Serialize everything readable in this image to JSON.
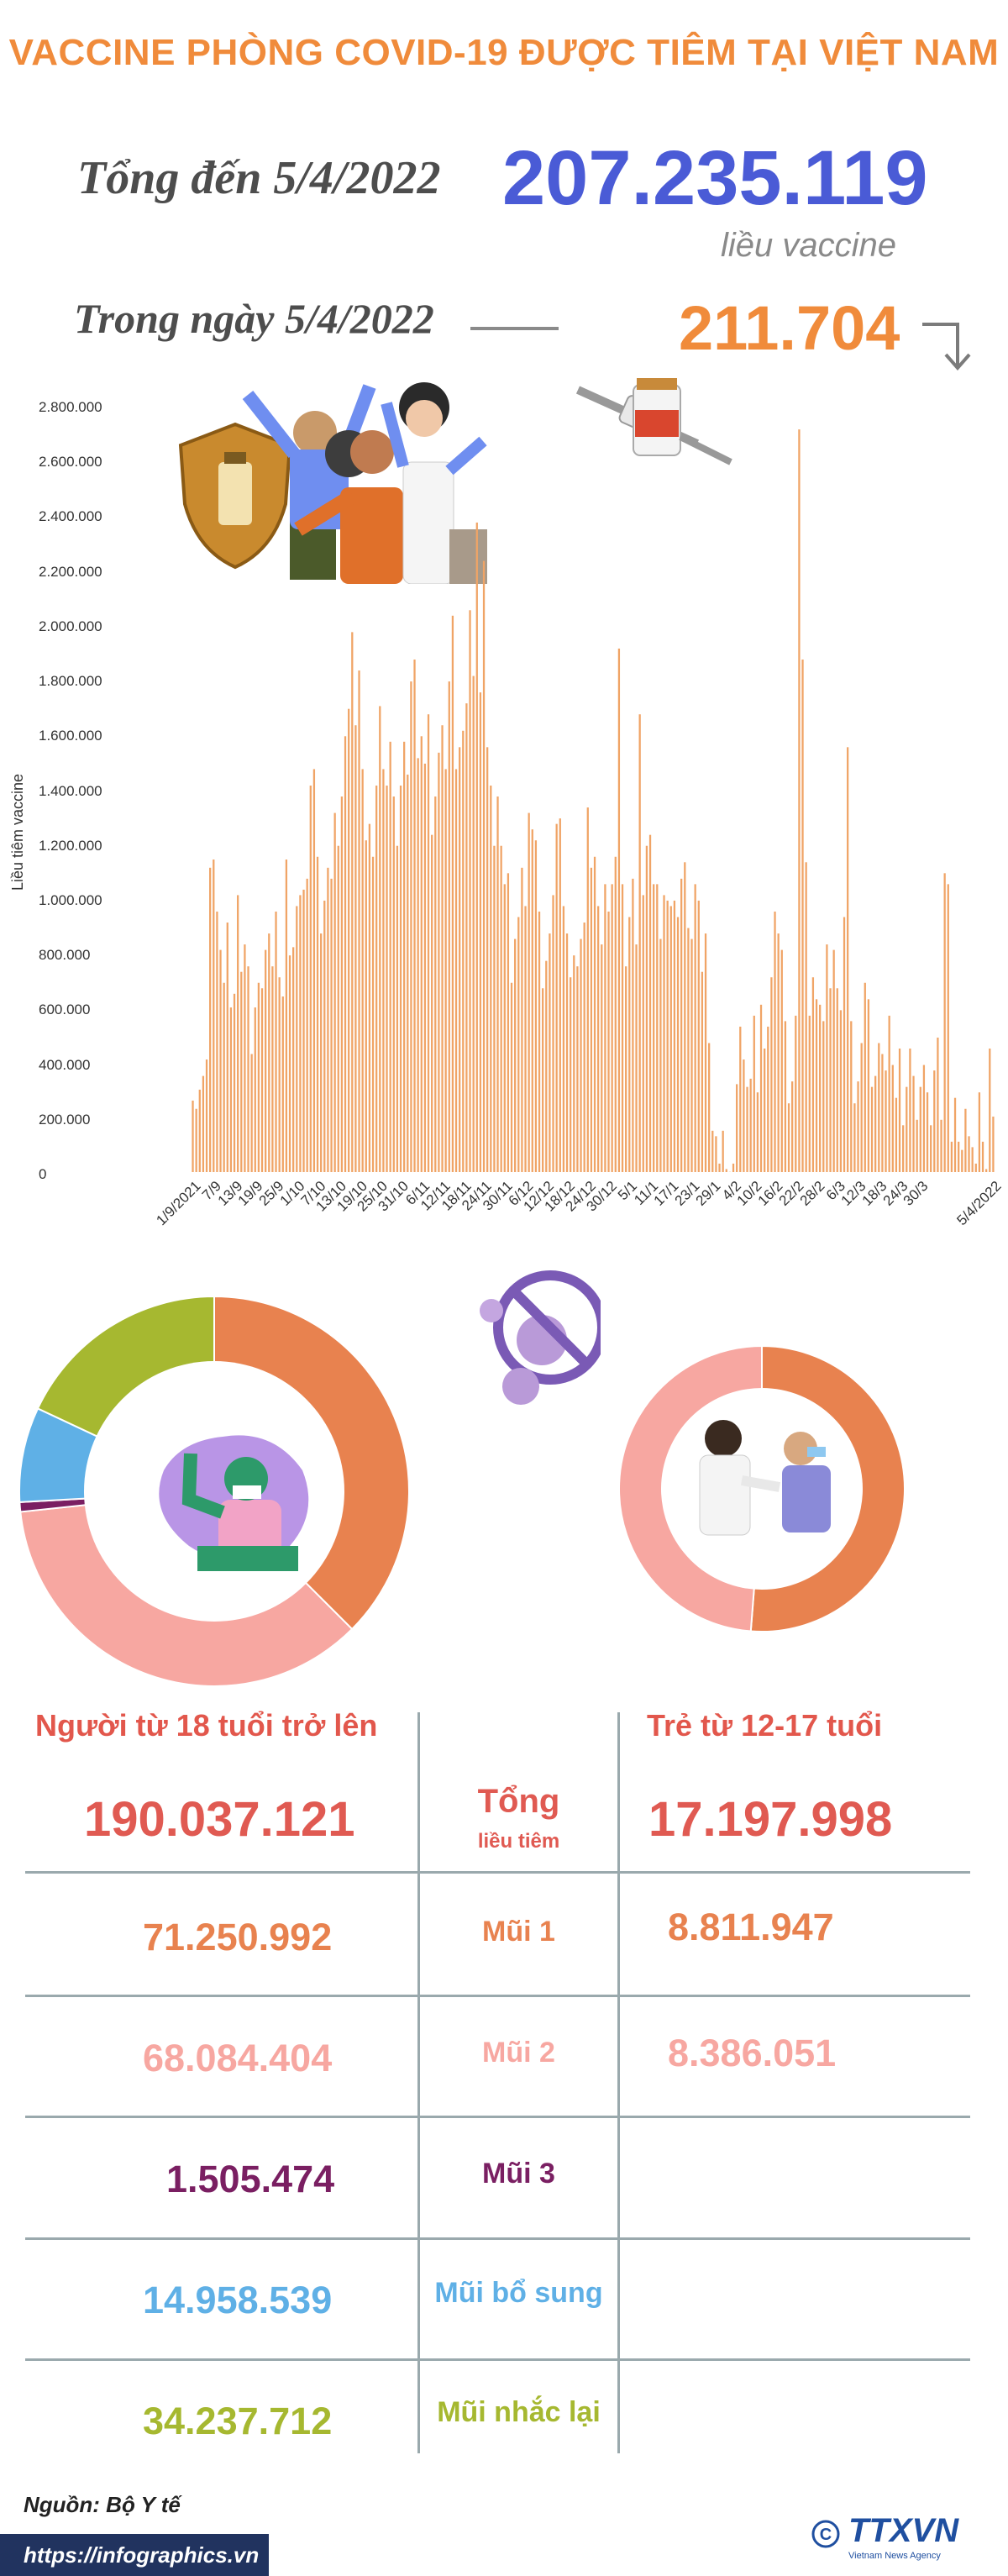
{
  "title": "VACCINE PHÒNG COVID-19 ĐƯỢC TIÊM TẠI VIỆT NAM",
  "summary": {
    "total_label": "Tổng đến 5/4/2022",
    "total_value": "207.235.119",
    "total_unit": "liều vaccine",
    "day_label": "Trong ngày 5/4/2022",
    "day_value": "211.704",
    "day_trend_icon": "arrow-down-icon"
  },
  "chart_data": {
    "type": "bar",
    "ylabel": "Liều tiêm vaccine",
    "ylim": [
      0,
      2800000
    ],
    "yticks": [
      "0",
      "200.000",
      "400.000",
      "600.000",
      "800.000",
      "1.000.000",
      "1.200.000",
      "1.400.000",
      "1.600.000",
      "1.800.000",
      "2.000.000",
      "2.200.000",
      "2.400.000",
      "2.600.000",
      "2.800.000"
    ],
    "x_start": "1/9/2021",
    "x_end": "5/4/2022",
    "xticks": [
      "1/9/2021",
      "7/9",
      "13/9",
      "19/9",
      "25/9",
      "1/10",
      "7/10",
      "13/10",
      "19/10",
      "25/10",
      "31/10",
      "6/11",
      "12/11",
      "18/11",
      "24/11",
      "30/11",
      "6/12",
      "12/12",
      "18/12",
      "24/12",
      "30/12",
      "5/1",
      "11/1",
      "17/1",
      "23/1",
      "29/1",
      "4/2",
      "10/2",
      "16/2",
      "22/2",
      "28/2",
      "6/3",
      "12/3",
      "18/3",
      "24/3",
      "30/3",
      "5/4/2022"
    ],
    "color": "#f0a466",
    "values": [
      270000,
      240000,
      310000,
      360000,
      420000,
      1120000,
      1150000,
      960000,
      820000,
      700000,
      920000,
      610000,
      660000,
      1020000,
      740000,
      840000,
      760000,
      440000,
      610000,
      700000,
      680000,
      820000,
      880000,
      760000,
      960000,
      720000,
      650000,
      1150000,
      800000,
      830000,
      980000,
      1020000,
      1040000,
      1080000,
      1420000,
      1480000,
      1160000,
      880000,
      1000000,
      1120000,
      1080000,
      1320000,
      1200000,
      1380000,
      1600000,
      1700000,
      1980000,
      1640000,
      1840000,
      1480000,
      1220000,
      1280000,
      1160000,
      1420000,
      1710000,
      1480000,
      1420000,
      1580000,
      1380000,
      1200000,
      1420000,
      1580000,
      1460000,
      1800000,
      1880000,
      1520000,
      1600000,
      1500000,
      1680000,
      1240000,
      1380000,
      1540000,
      1640000,
      1480000,
      1800000,
      2040000,
      1480000,
      1560000,
      1620000,
      1720000,
      2060000,
      1820000,
      2380000,
      1760000,
      2240000,
      1560000,
      1420000,
      1200000,
      1380000,
      1200000,
      1060000,
      1100000,
      700000,
      860000,
      940000,
      1120000,
      980000,
      1320000,
      1260000,
      1220000,
      960000,
      680000,
      780000,
      880000,
      1020000,
      1280000,
      1300000,
      980000,
      880000,
      720000,
      800000,
      760000,
      860000,
      920000,
      1340000,
      1120000,
      1160000,
      980000,
      840000,
      1060000,
      960000,
      1060000,
      1160000,
      1920000,
      1060000,
      760000,
      940000,
      1080000,
      840000,
      1680000,
      1020000,
      1200000,
      1240000,
      1060000,
      1060000,
      860000,
      1020000,
      1000000,
      980000,
      1000000,
      940000,
      1080000,
      1140000,
      900000,
      860000,
      1060000,
      1000000,
      740000,
      880000,
      480000,
      160000,
      140000,
      40000,
      160000,
      20000,
      10000,
      40000,
      330000,
      540000,
      420000,
      320000,
      350000,
      580000,
      300000,
      620000,
      460000,
      540000,
      720000,
      960000,
      880000,
      820000,
      560000,
      260000,
      340000,
      580000,
      2720000,
      1880000,
      1140000,
      580000,
      720000,
      640000,
      620000,
      560000,
      840000,
      680000,
      820000,
      680000,
      600000,
      940000,
      1560000,
      560000,
      260000,
      340000,
      480000,
      700000,
      640000,
      320000,
      360000,
      480000,
      440000,
      380000,
      580000,
      400000,
      280000,
      460000,
      180000,
      320000,
      460000,
      360000,
      200000,
      320000,
      400000,
      300000,
      180000,
      380000,
      500000,
      200000,
      1100000,
      1060000,
      120000,
      280000,
      120000,
      90000,
      240000,
      140000,
      100000,
      40000,
      300000,
      120000,
      20000,
      460000,
      211704
    ]
  },
  "groups": {
    "adults": {
      "header": "Người từ 18 tuổi trở lên",
      "total": "190.037.121",
      "dose1": "71.250.992",
      "dose2": "68.084.404",
      "dose3": "1.505.474",
      "supplementary": "14.958.539",
      "booster": "34.237.712"
    },
    "children": {
      "header": "Trẻ từ 12-17 tuổi",
      "total": "17.197.998",
      "dose1": "8.811.947",
      "dose2": "8.386.051"
    }
  },
  "row_labels": {
    "total": "Tổng",
    "total_sub": "liều tiêm",
    "dose1": "Mũi 1",
    "dose2": "Mũi 2",
    "dose3": "Mũi 3",
    "supplementary": "Mũi bổ sung",
    "booster": "Mũi nhắc lại"
  },
  "colors": {
    "total": "#e05a52",
    "dose1": "#e8824f",
    "dose2": "#f7a7a1",
    "dose3": "#7a1f62",
    "supplementary": "#5fb0e6",
    "booster": "#a6b830"
  },
  "footer": {
    "source": "Nguồn: Bộ Y tế",
    "url": "https://infographics.vn",
    "logo": "TTXVN",
    "logo_sub": "Vietnam News Agency"
  }
}
